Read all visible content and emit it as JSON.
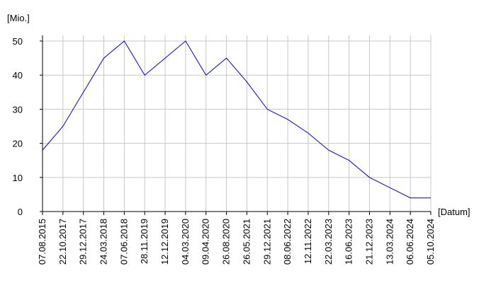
{
  "chart_data": {
    "type": "line",
    "y_label": "[Mio.]",
    "x_label": "[Datum]",
    "categories": [
      "07.08.2015",
      "22.10.2017",
      "29.12.2017",
      "24.03.2018",
      "07.06.2018",
      "28.11.2019",
      "12.12.2019",
      "04.03.2020",
      "09.04.2020",
      "26.08.2020",
      "26.05.2021",
      "29.12.2021",
      "08.06.2022",
      "12.11.2022",
      "22.03.2023",
      "16.06.2023",
      "21.12.2023",
      "13.03.2024",
      "06.06.2024",
      "05.10.2024"
    ],
    "values": [
      18,
      25,
      35,
      45,
      50,
      40,
      45,
      50,
      40,
      45,
      38,
      30,
      27,
      23,
      18,
      15,
      10,
      7,
      4,
      4
    ],
    "color": "#0000cc",
    "ylim": [
      0,
      50
    ],
    "yticks": [
      0,
      10,
      20,
      30,
      40,
      50
    ],
    "grid": true
  }
}
